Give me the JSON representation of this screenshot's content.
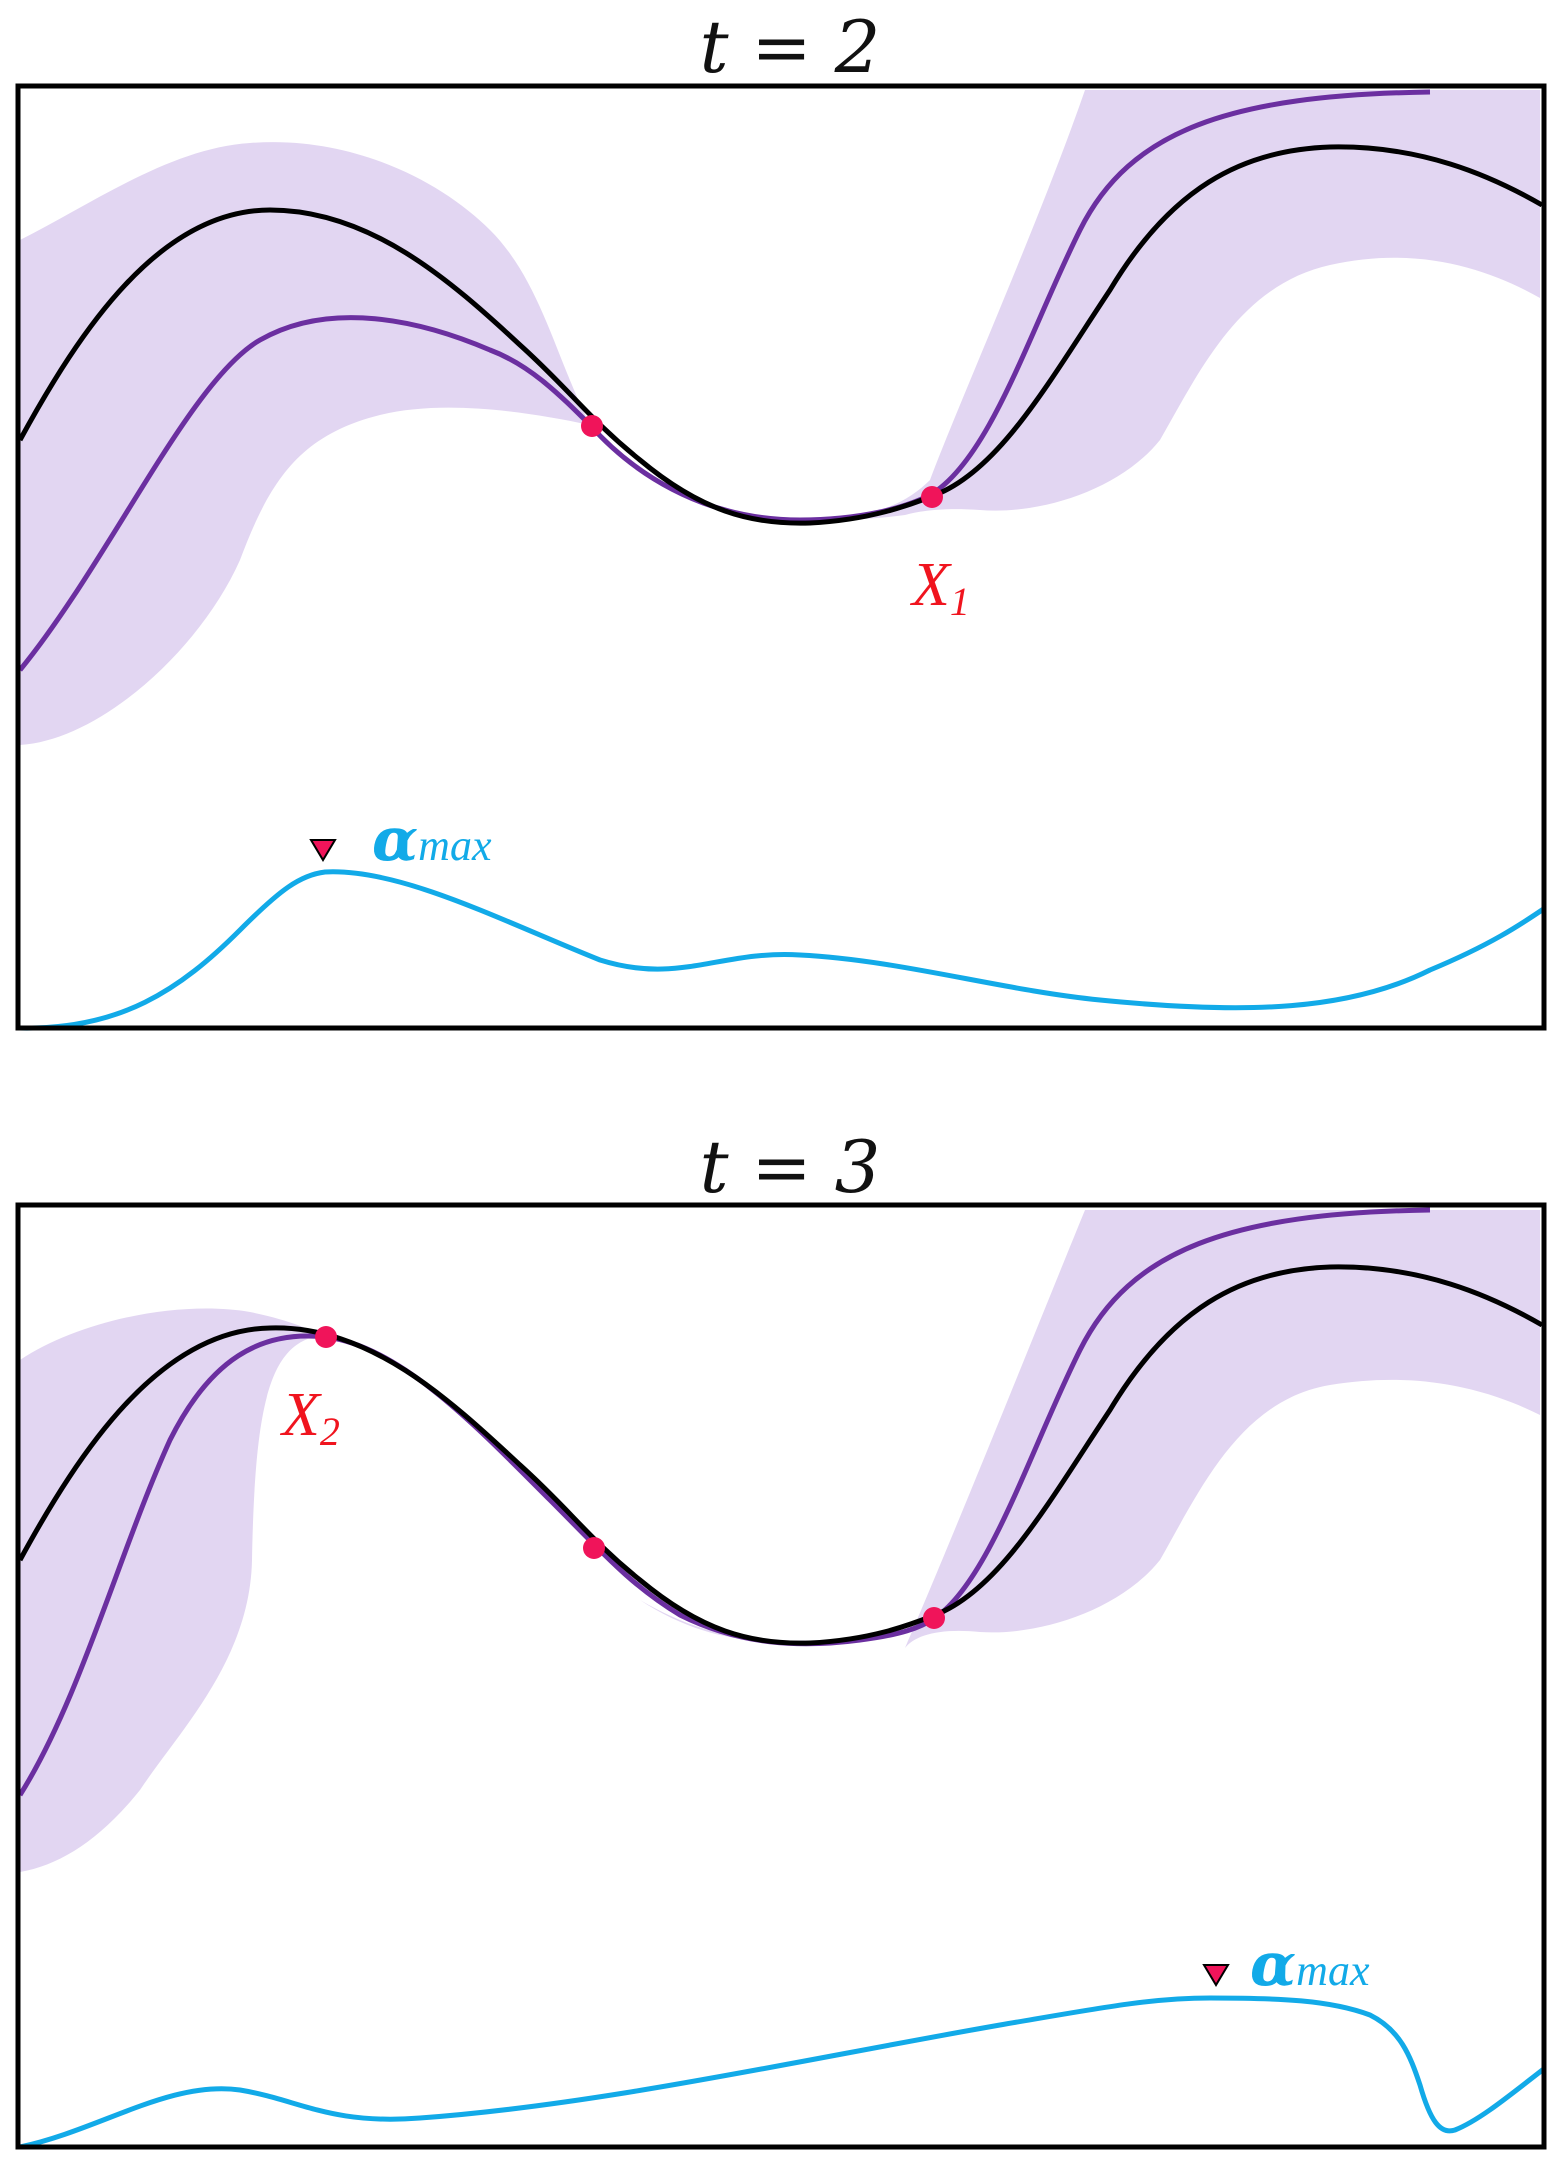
{
  "colors": {
    "frame": "#000000",
    "objective": "#000000",
    "mean": "#6b2fa0",
    "band": "#e2d6f2",
    "observation": "#f0145a",
    "acquisition": "#12aae8",
    "label": "#f0141e"
  },
  "panels": [
    {
      "title": "t = 2",
      "point_label": "X",
      "point_label_sub": "1",
      "acq_label": "α",
      "acq_label_sub": "max",
      "observation_count": 2
    },
    {
      "title": "t = 3",
      "point_label": "X",
      "point_label_sub": "2",
      "acq_label": "α",
      "acq_label_sub": "max",
      "observation_count": 3
    }
  ]
}
